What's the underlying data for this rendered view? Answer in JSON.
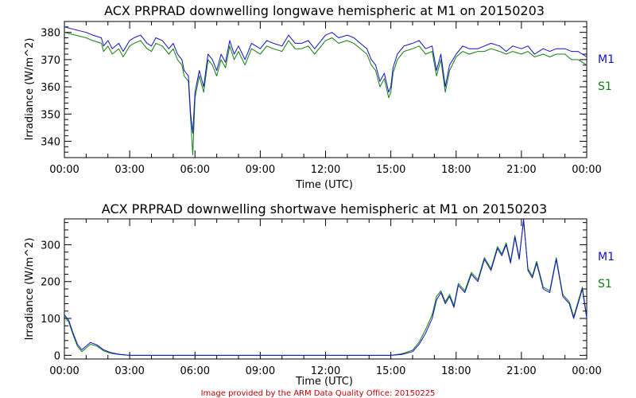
{
  "colors": {
    "m1": "#1010c8",
    "s1": "#108010",
    "credit": "#c00000",
    "axis": "#000000"
  },
  "footer": {
    "credit": "Image provided by the ARM Data Quality Office: 20150225"
  },
  "chart_data": [
    {
      "type": "line",
      "title": "ACX PRPRAD downwelling longwave hemispheric at M1 on 20150203",
      "xlabel": "Time (UTC)",
      "ylabel": "Irradiance (W/m^2)",
      "xlim": [
        0,
        24
      ],
      "ylim": [
        334,
        384
      ],
      "xticks": [
        0,
        3,
        6,
        9,
        12,
        15,
        18,
        21,
        24
      ],
      "xtick_labels": [
        "00:00",
        "03:00",
        "06:00",
        "09:00",
        "12:00",
        "15:00",
        "18:00",
        "21:00",
        "00:00"
      ],
      "yticks": [
        340,
        350,
        360,
        370,
        380
      ],
      "ytick_labels": [
        "340",
        "350",
        "360",
        "370",
        "380"
      ],
      "grid": false,
      "legend_placement": "right",
      "series": [
        {
          "name": "M1",
          "color": "#1010c8",
          "x": [
            0.0,
            0.5,
            1.0,
            1.3,
            1.7,
            1.8,
            2.0,
            2.2,
            2.5,
            2.7,
            3.0,
            3.2,
            3.5,
            3.8,
            4.0,
            4.2,
            4.5,
            4.8,
            5.0,
            5.2,
            5.4,
            5.5,
            5.6,
            5.7,
            5.8,
            5.9,
            6.0,
            6.2,
            6.4,
            6.6,
            6.8,
            7.0,
            7.2,
            7.4,
            7.6,
            7.8,
            8.0,
            8.3,
            8.6,
            9.0,
            9.3,
            9.6,
            10.0,
            10.3,
            10.6,
            10.9,
            11.2,
            11.5,
            11.8,
            12.0,
            12.3,
            12.6,
            13.0,
            13.3,
            13.6,
            13.9,
            14.1,
            14.3,
            14.5,
            14.7,
            14.9,
            15.0,
            15.1,
            15.3,
            15.6,
            16.0,
            16.3,
            16.6,
            16.9,
            17.1,
            17.3,
            17.5,
            17.7,
            18.0,
            18.3,
            18.6,
            19.0,
            19.3,
            19.6,
            20.0,
            20.3,
            20.6,
            21.0,
            21.3,
            21.6,
            22.0,
            22.3,
            22.6,
            23.0,
            23.3,
            23.6,
            24.0
          ],
          "y": [
            382,
            381,
            380,
            379,
            378,
            375,
            377,
            374,
            376,
            373,
            377,
            378,
            379,
            376,
            375,
            378,
            377,
            374,
            376,
            372,
            370,
            366,
            365,
            364,
            350,
            343,
            358,
            366,
            360,
            372,
            370,
            366,
            372,
            369,
            377,
            372,
            375,
            370,
            376,
            374,
            377,
            376,
            375,
            379,
            376,
            376,
            377,
            374,
            377,
            379,
            380,
            378,
            379,
            378,
            376,
            374,
            370,
            368,
            362,
            365,
            358,
            360,
            367,
            372,
            375,
            376,
            377,
            374,
            375,
            366,
            372,
            360,
            368,
            372,
            375,
            374,
            374,
            375,
            376,
            375,
            373,
            375,
            374,
            375,
            372,
            374,
            373,
            374,
            374,
            373,
            373,
            371
          ]
        },
        {
          "name": "S1",
          "color": "#108010",
          "x": [
            0.0,
            0.5,
            1.0,
            1.3,
            1.7,
            1.8,
            2.0,
            2.2,
            2.5,
            2.7,
            3.0,
            3.2,
            3.5,
            3.8,
            4.0,
            4.2,
            4.5,
            4.8,
            5.0,
            5.2,
            5.4,
            5.5,
            5.6,
            5.7,
            5.8,
            5.9,
            6.0,
            6.2,
            6.4,
            6.6,
            6.8,
            7.0,
            7.2,
            7.4,
            7.6,
            7.8,
            8.0,
            8.3,
            8.6,
            9.0,
            9.3,
            9.6,
            10.0,
            10.3,
            10.6,
            10.9,
            11.2,
            11.5,
            11.8,
            12.0,
            12.3,
            12.6,
            13.0,
            13.3,
            13.6,
            13.9,
            14.1,
            14.3,
            14.5,
            14.7,
            14.9,
            15.0,
            15.1,
            15.3,
            15.6,
            16.0,
            16.3,
            16.6,
            16.9,
            17.1,
            17.3,
            17.5,
            17.7,
            18.0,
            18.3,
            18.6,
            19.0,
            19.3,
            19.6,
            20.0,
            20.3,
            20.6,
            21.0,
            21.3,
            21.6,
            22.0,
            22.3,
            22.6,
            23.0,
            23.3,
            23.6,
            24.0
          ],
          "y": [
            380,
            379,
            378,
            377,
            376,
            373,
            375,
            372,
            374,
            371,
            375,
            376,
            377,
            374,
            373,
            376,
            375,
            372,
            374,
            370,
            368,
            364,
            363,
            362,
            348,
            335,
            356,
            364,
            358,
            370,
            368,
            364,
            370,
            367,
            375,
            370,
            373,
            368,
            374,
            372,
            375,
            374,
            373,
            377,
            374,
            374,
            375,
            372,
            375,
            377,
            378,
            376,
            377,
            376,
            374,
            372,
            368,
            366,
            360,
            363,
            356,
            358,
            365,
            370,
            373,
            374,
            375,
            372,
            373,
            364,
            370,
            358,
            366,
            371,
            373,
            372,
            373,
            373,
            374,
            373,
            372,
            373,
            372,
            373,
            371,
            372,
            371,
            372,
            372,
            370,
            370,
            368
          ]
        }
      ]
    },
    {
      "type": "line",
      "title": "ACX PRPRAD downwelling shortwave hemispheric at M1 on 20150203",
      "xlabel": "Time (UTC)",
      "ylabel": "Irradiance (W/m^2)",
      "xlim": [
        0,
        24
      ],
      "ylim": [
        -10,
        370
      ],
      "xticks": [
        0,
        3,
        6,
        9,
        12,
        15,
        18,
        21,
        24
      ],
      "xtick_labels": [
        "00:00",
        "03:00",
        "06:00",
        "09:00",
        "12:00",
        "15:00",
        "18:00",
        "21:00",
        "00:00"
      ],
      "yticks": [
        0,
        100,
        200,
        300
      ],
      "ytick_labels": [
        "0",
        "100",
        "200",
        "300"
      ],
      "grid": false,
      "legend_placement": "right",
      "series": [
        {
          "name": "M1",
          "color": "#1010c8",
          "x": [
            0.0,
            0.2,
            0.4,
            0.6,
            0.8,
            1.0,
            1.2,
            1.5,
            1.8,
            2.1,
            2.5,
            3.0,
            4.0,
            6.0,
            9.0,
            12.0,
            14.0,
            15.0,
            15.5,
            16.0,
            16.3,
            16.6,
            16.9,
            17.1,
            17.3,
            17.5,
            17.7,
            17.9,
            18.1,
            18.4,
            18.7,
            19.0,
            19.3,
            19.6,
            19.9,
            20.1,
            20.3,
            20.5,
            20.7,
            20.9,
            21.1,
            21.3,
            21.5,
            21.7,
            22.0,
            22.3,
            22.6,
            22.9,
            23.2,
            23.4,
            23.6,
            23.8,
            24.0
          ],
          "y": [
            110,
            95,
            60,
            30,
            15,
            25,
            35,
            28,
            15,
            8,
            3,
            0,
            0,
            0,
            0,
            0,
            0,
            0,
            2,
            10,
            30,
            60,
            100,
            150,
            170,
            140,
            160,
            130,
            190,
            170,
            220,
            200,
            260,
            230,
            290,
            270,
            300,
            250,
            320,
            260,
            370,
            230,
            210,
            250,
            180,
            170,
            260,
            160,
            140,
            100,
            140,
            180,
            100
          ]
        },
        {
          "name": "S1",
          "color": "#108010",
          "x": [
            0.0,
            0.2,
            0.4,
            0.6,
            0.8,
            1.0,
            1.2,
            1.5,
            1.8,
            2.1,
            2.5,
            3.0,
            4.0,
            6.0,
            9.0,
            12.0,
            14.0,
            15.0,
            15.5,
            16.0,
            16.3,
            16.6,
            16.9,
            17.1,
            17.3,
            17.5,
            17.7,
            17.9,
            18.1,
            18.4,
            18.7,
            19.0,
            19.3,
            19.6,
            19.9,
            20.1,
            20.3,
            20.5,
            20.7,
            20.9,
            21.1,
            21.3,
            21.5,
            21.7,
            22.0,
            22.3,
            22.6,
            22.9,
            23.2,
            23.4,
            23.6,
            23.8,
            24.0
          ],
          "y": [
            105,
            90,
            55,
            25,
            10,
            20,
            30,
            25,
            12,
            6,
            2,
            0,
            0,
            0,
            0,
            0,
            0,
            0,
            4,
            14,
            36,
            70,
            110,
            160,
            175,
            145,
            165,
            135,
            195,
            175,
            225,
            205,
            265,
            235,
            295,
            275,
            305,
            255,
            325,
            265,
            365,
            235,
            215,
            255,
            185,
            175,
            265,
            165,
            145,
            105,
            145,
            185,
            105
          ]
        }
      ]
    }
  ]
}
